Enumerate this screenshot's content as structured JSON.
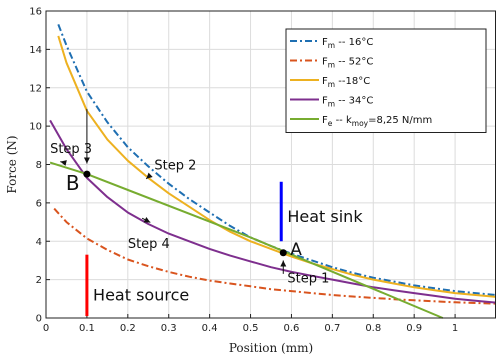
{
  "chart_data": {
    "type": "line",
    "xlabel": "Position (mm)",
    "ylabel": "Force (N)",
    "xlim": [
      0,
      1.1
    ],
    "ylim": [
      0,
      16
    ],
    "grid": true,
    "xticks": [
      0,
      0.1,
      0.2,
      0.3,
      0.4,
      0.5,
      0.6,
      0.7,
      0.8,
      0.9,
      1
    ],
    "yticks": [
      0,
      2,
      4,
      6,
      8,
      10,
      12,
      14,
      16
    ],
    "legend_position": "top-right",
    "series": [
      {
        "name": "F",
        "sub": "m",
        "suffix": " -- 16°C",
        "color": "#1f6fb2",
        "style": "dashdot",
        "x": [
          0.03,
          0.05,
          0.1,
          0.15,
          0.2,
          0.25,
          0.3,
          0.35,
          0.4,
          0.45,
          0.5,
          0.55,
          0.6,
          0.65,
          0.7,
          0.75,
          0.8,
          0.85,
          0.9,
          0.95,
          1.0,
          1.05,
          1.1
        ],
        "y": [
          15.3,
          14.2,
          11.8,
          10.2,
          8.9,
          7.9,
          7.0,
          6.2,
          5.5,
          4.8,
          4.2,
          3.75,
          3.35,
          3.0,
          2.65,
          2.35,
          2.1,
          1.9,
          1.7,
          1.55,
          1.4,
          1.3,
          1.2
        ]
      },
      {
        "name": "F",
        "sub": "m",
        "suffix": " -- 52°C",
        "color": "#d9541e",
        "style": "dashdot",
        "x": [
          0.02,
          0.05,
          0.1,
          0.15,
          0.2,
          0.25,
          0.3,
          0.35,
          0.4,
          0.45,
          0.5,
          0.55,
          0.6,
          0.65,
          0.7,
          0.75,
          0.8,
          0.85,
          0.9,
          0.95,
          1.0,
          1.05,
          1.1
        ],
        "y": [
          5.7,
          5.0,
          4.15,
          3.55,
          3.05,
          2.7,
          2.4,
          2.15,
          1.95,
          1.8,
          1.65,
          1.5,
          1.4,
          1.3,
          1.2,
          1.12,
          1.05,
          0.98,
          0.92,
          0.87,
          0.82,
          0.78,
          0.75
        ]
      },
      {
        "name": "F",
        "sub": "m",
        "suffix": " --18°C",
        "color": "#edb120",
        "style": "solid",
        "x": [
          0.03,
          0.05,
          0.1,
          0.15,
          0.2,
          0.25,
          0.3,
          0.35,
          0.4,
          0.45,
          0.5,
          0.55,
          0.6,
          0.65,
          0.7,
          0.75,
          0.8,
          0.85,
          0.9,
          0.95,
          1.0,
          1.05,
          1.1
        ],
        "y": [
          14.7,
          13.3,
          10.8,
          9.3,
          8.2,
          7.3,
          6.5,
          5.8,
          5.1,
          4.5,
          4.0,
          3.6,
          3.2,
          2.85,
          2.55,
          2.25,
          2.0,
          1.8,
          1.6,
          1.45,
          1.3,
          1.2,
          1.1
        ]
      },
      {
        "name": "F",
        "sub": "m",
        "suffix": " -- 34°C",
        "color": "#7e2f8e",
        "style": "solid",
        "x": [
          0.01,
          0.05,
          0.1,
          0.15,
          0.2,
          0.25,
          0.3,
          0.35,
          0.4,
          0.45,
          0.5,
          0.55,
          0.6,
          0.65,
          0.7,
          0.75,
          0.8,
          0.85,
          0.9,
          0.95,
          1.0,
          1.05,
          1.1
        ],
        "y": [
          10.3,
          8.8,
          7.3,
          6.3,
          5.5,
          4.9,
          4.4,
          4.0,
          3.6,
          3.25,
          2.95,
          2.65,
          2.4,
          2.2,
          2.0,
          1.8,
          1.6,
          1.45,
          1.3,
          1.15,
          1.0,
          0.9,
          0.8
        ]
      },
      {
        "name": "F",
        "sub": "e",
        "suffix": " -- k",
        "suffix_sub": "moy",
        "suffix_tail": "=8,25 N/mm",
        "color": "#77ac30",
        "style": "solid",
        "x": [
          0.01,
          0.1,
          0.5,
          0.97
        ],
        "y": [
          8.1,
          7.5,
          4.2,
          0.0
        ]
      }
    ],
    "points": [
      {
        "label": "A",
        "x": 0.58,
        "y": 3.4
      },
      {
        "label": "B",
        "x": 0.1,
        "y": 7.5
      }
    ],
    "annotations": {
      "step1": "Step 1",
      "step2": "Step 2",
      "step3": "Step 3",
      "step4": "Step 4",
      "heat_sink": "Heat sink",
      "heat_source": "Heat source"
    },
    "annotation_colors": {
      "heat_sink": "#0000ff",
      "heat_source": "#ff0000"
    }
  }
}
